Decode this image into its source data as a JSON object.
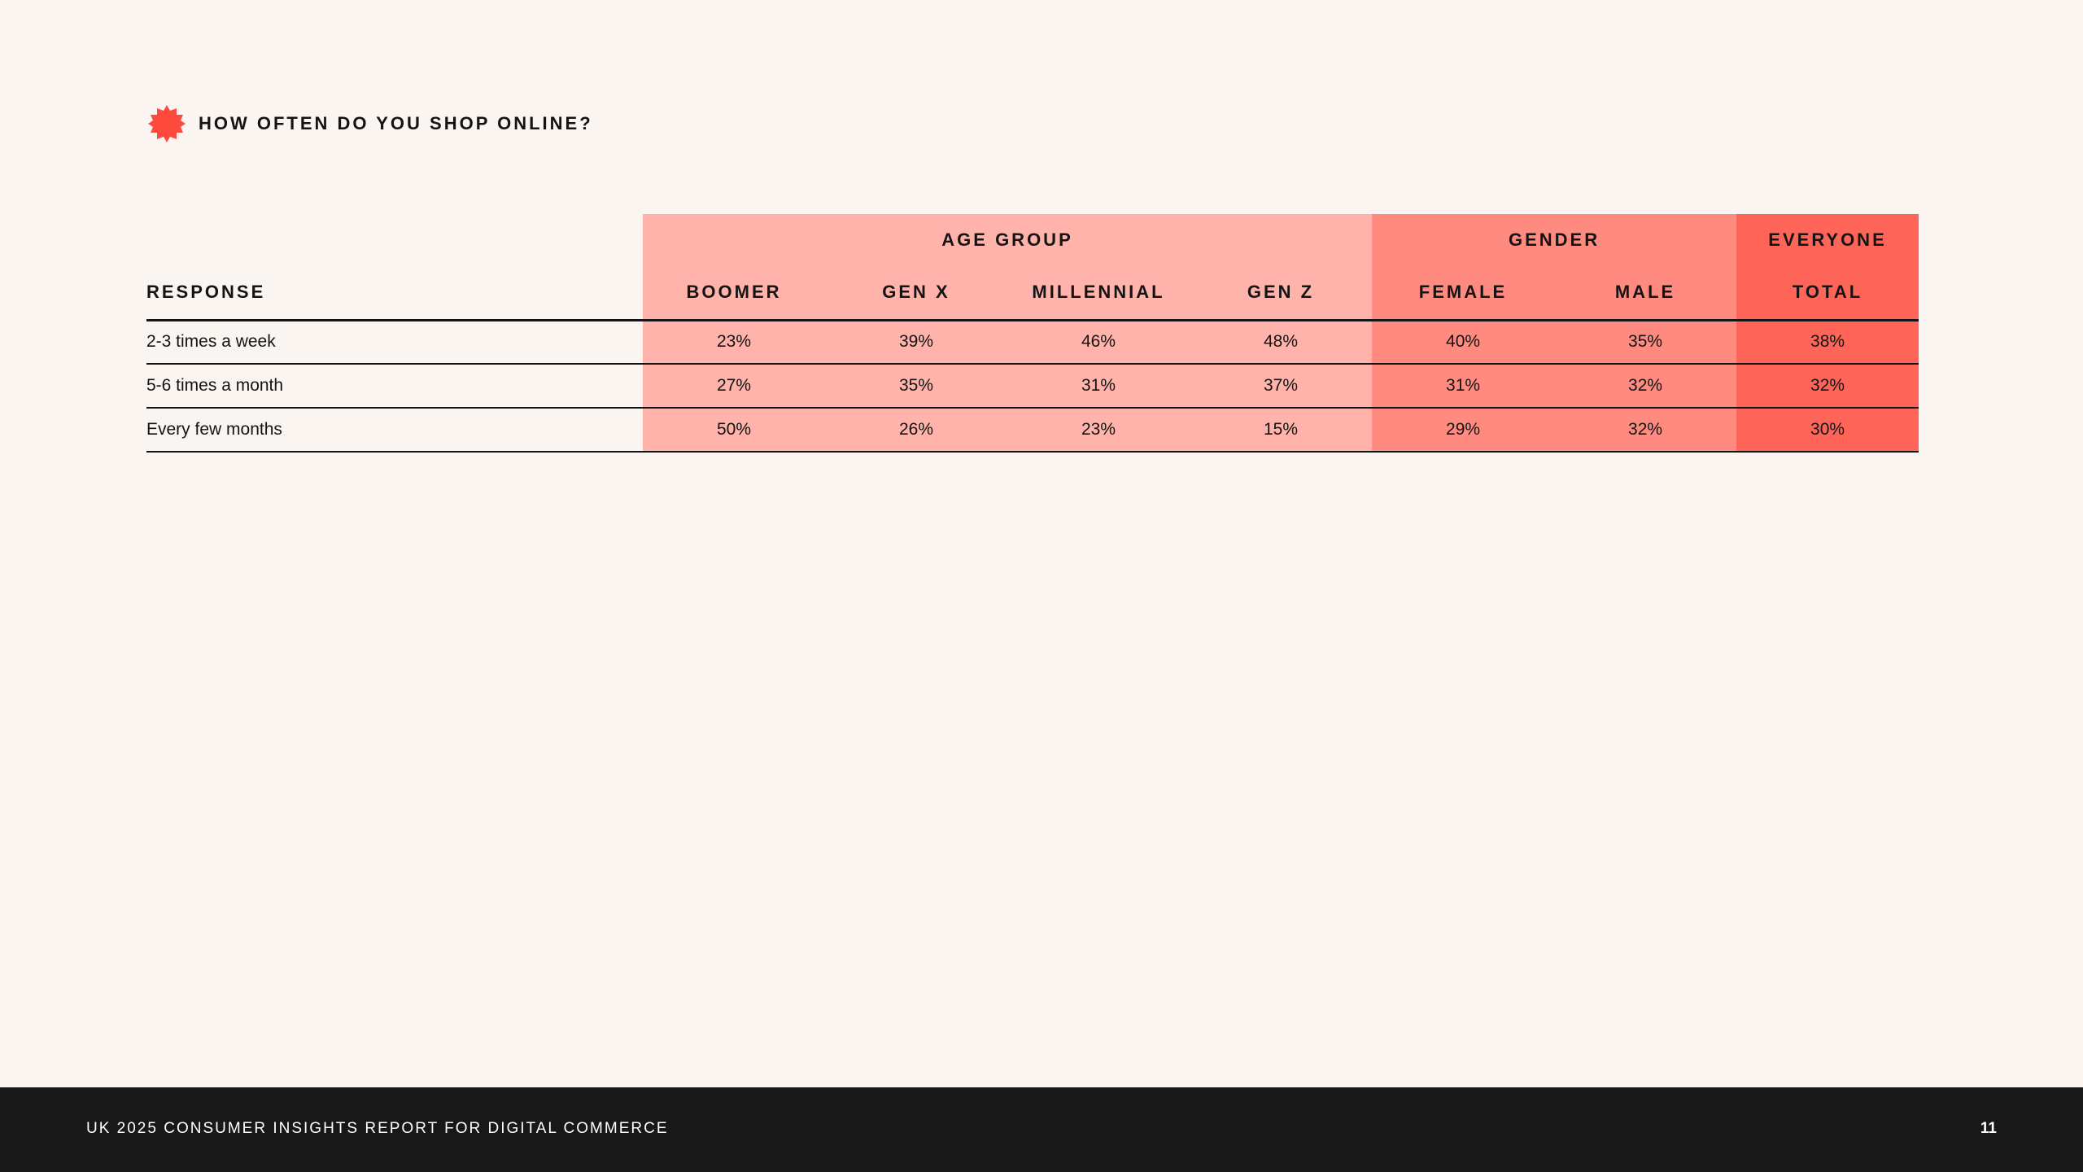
{
  "header": {
    "title": "HOW OFTEN DO YOU SHOP ONLINE?",
    "icon": "flower-badge-icon",
    "accent": "#ff4b3e"
  },
  "table": {
    "response_header": "RESPONSE",
    "groups": {
      "age": "AGE GROUP",
      "gender": "GENDER",
      "everyone": "EVERYONE"
    },
    "columns": [
      "BOOMER",
      "GEN X",
      "MILLENNIAL",
      "GEN Z",
      "FEMALE",
      "MALE",
      "TOTAL"
    ],
    "rows": [
      {
        "label": "2-3 times a week",
        "values": [
          "23%",
          "39%",
          "46%",
          "48%",
          "40%",
          "35%",
          "38%"
        ]
      },
      {
        "label": "5-6 times a month",
        "values": [
          "27%",
          "35%",
          "31%",
          "37%",
          "31%",
          "32%",
          "32%"
        ]
      },
      {
        "label": "Every few months",
        "values": [
          "50%",
          "26%",
          "23%",
          "15%",
          "29%",
          "32%",
          "30%"
        ]
      }
    ],
    "colors": {
      "age": "#ffb3aa",
      "gender": "#ff8a80",
      "everyone": "#ff6459"
    }
  },
  "footer": {
    "title": "UK 2025 CONSUMER INSIGHTS REPORT FOR DIGITAL COMMERCE",
    "page": "11"
  }
}
